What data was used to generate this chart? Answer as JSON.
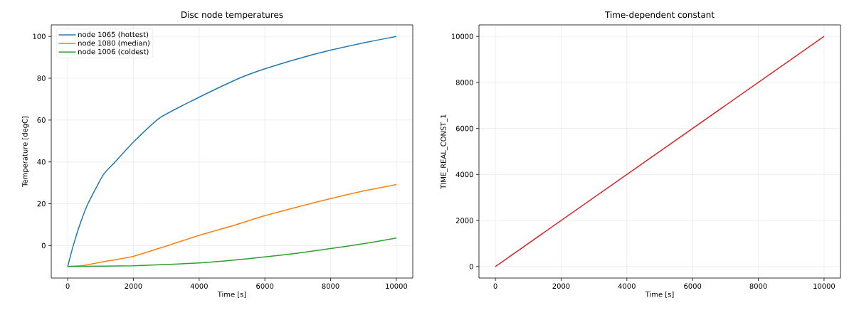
{
  "chart_data": [
    {
      "type": "line",
      "title": "Disc node temperatures",
      "xlabel": "Time [s]",
      "ylabel": "Temperature [degC]",
      "xlim": [
        -500,
        10500
      ],
      "ylim": [
        -15.5,
        105.5
      ],
      "xticks": [
        0,
        2000,
        4000,
        6000,
        8000,
        10000
      ],
      "yticks": [
        0,
        20,
        40,
        60,
        80,
        100
      ],
      "grid": true,
      "legend": "top left",
      "series": [
        {
          "name": "node 1065 (hottest)",
          "color": "#1f77b4",
          "x": [
            0,
            170,
            370,
            616,
            1083,
            1445,
            2000,
            2780,
            3792,
            5223,
            6000,
            7000,
            8000,
            9000,
            10000
          ],
          "values": [
            -10,
            0,
            10,
            20,
            33.8,
            40,
            49.5,
            60.8,
            69.3,
            80,
            84.5,
            89.3,
            93.4,
            96.9,
            100
          ]
        },
        {
          "name": "node 1080 (median)",
          "color": "#ff7f0e",
          "x": [
            0,
            500,
            1000,
            2000,
            3000,
            4000,
            5000,
            6000,
            7000,
            8000,
            9000,
            10000
          ],
          "values": [
            -10,
            -9.5,
            -7.9,
            -5.1,
            -0.2,
            4.9,
            9.4,
            14.3,
            18.5,
            22.5,
            26.1,
            29.2
          ]
        },
        {
          "name": "node 1006 (coldest)",
          "color": "#2ca02c",
          "x": [
            0,
            2000,
            4000,
            5000,
            6000,
            7000,
            8000,
            9000,
            10000
          ],
          "values": [
            -10,
            -9.6,
            -8.3,
            -7.0,
            -5.4,
            -3.6,
            -1.4,
            0.9,
            3.6
          ]
        }
      ]
    },
    {
      "type": "line",
      "title": "Time-dependent constant",
      "xlabel": "Time [s]",
      "ylabel": "TIME_REAL_CONST_1",
      "xlim": [
        -500,
        10500
      ],
      "ylim": [
        -500,
        10500
      ],
      "xticks": [
        0,
        2000,
        4000,
        6000,
        8000,
        10000
      ],
      "yticks": [
        0,
        2000,
        4000,
        6000,
        8000,
        10000
      ],
      "grid": true,
      "series": [
        {
          "color": "#d62728",
          "x": [
            0,
            10000
          ],
          "values": [
            0,
            10000
          ]
        }
      ]
    }
  ]
}
